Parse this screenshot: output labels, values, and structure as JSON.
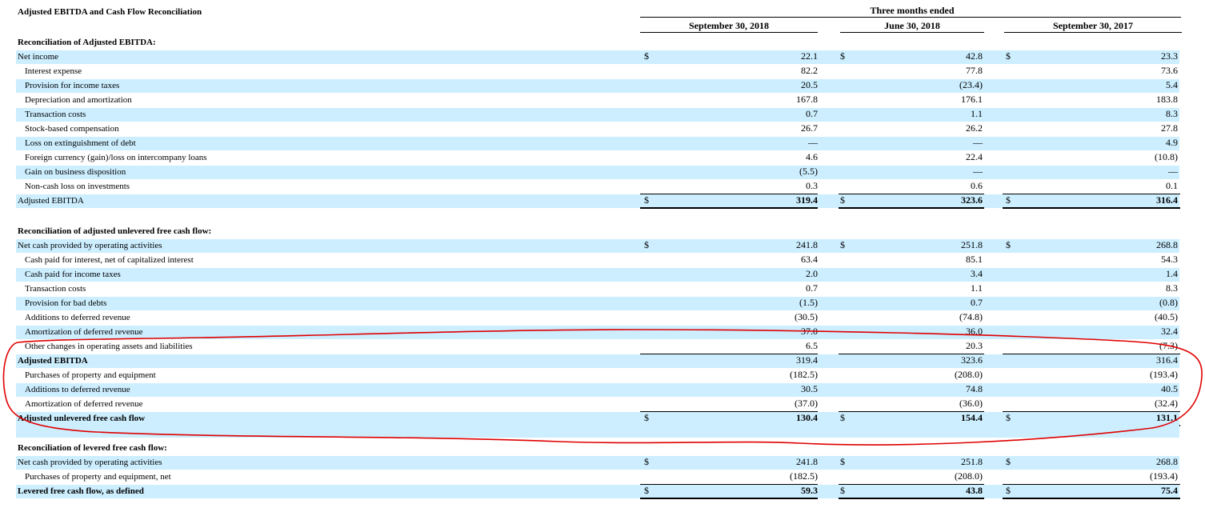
{
  "title": "Adjusted EBITDA and Cash Flow Reconciliation",
  "header": {
    "group": "Three months ended",
    "columns": [
      "September 30, 2018",
      "June 30, 2018",
      "September 30, 2017"
    ]
  },
  "currency_symbol": "$",
  "sections": [
    {
      "heading": "Reconciliation of Adjusted EBITDA:",
      "rows": [
        {
          "label": "Net income",
          "values": [
            "22.1",
            "42.8",
            "23.3"
          ],
          "dollar": true
        },
        {
          "label": "Interest expense",
          "values": [
            "82.2",
            "77.8",
            "73.6"
          ]
        },
        {
          "label": "Provision for income taxes",
          "values": [
            "20.5",
            "(23.4)",
            "5.4"
          ]
        },
        {
          "label": "Depreciation and amortization",
          "values": [
            "167.8",
            "176.1",
            "183.8"
          ]
        },
        {
          "label": "Transaction costs",
          "values": [
            "0.7",
            "1.1",
            "8.3"
          ]
        },
        {
          "label": "Stock-based compensation",
          "values": [
            "26.7",
            "26.2",
            "27.8"
          ]
        },
        {
          "label": "Loss on extinguishment of debt",
          "values": [
            "—",
            "—",
            "4.9"
          ]
        },
        {
          "label": "Foreign currency (gain)/loss on intercompany loans",
          "values": [
            "4.6",
            "22.4",
            "(10.8)"
          ]
        },
        {
          "label": "Gain on business disposition",
          "values": [
            "(5.5)",
            "—",
            "—"
          ]
        },
        {
          "label": "Non-cash loss on investments",
          "values": [
            "0.3",
            "0.6",
            "0.1"
          ]
        },
        {
          "label": "Adjusted EBITDA",
          "values": [
            "319.4",
            "323.6",
            "316.4"
          ],
          "dollar": true,
          "total": true
        }
      ]
    },
    {
      "heading": "Reconciliation of adjusted unlevered free cash flow:",
      "rows": [
        {
          "label": "Net cash provided by operating activities",
          "values": [
            "241.8",
            "251.8",
            "268.8"
          ],
          "dollar": true
        },
        {
          "label": "Cash paid for interest, net of capitalized interest",
          "values": [
            "63.4",
            "85.1",
            "54.3"
          ]
        },
        {
          "label": "Cash paid for income taxes",
          "values": [
            "2.0",
            "3.4",
            "1.4"
          ]
        },
        {
          "label": "Transaction costs",
          "values": [
            "0.7",
            "1.1",
            "8.3"
          ]
        },
        {
          "label": "Provision for bad debts",
          "values": [
            "(1.5)",
            "0.7",
            "(0.8)"
          ]
        },
        {
          "label": "Additions to deferred revenue",
          "values": [
            "(30.5)",
            "(74.8)",
            "(40.5)"
          ]
        },
        {
          "label": "Amortization of deferred revenue",
          "values": [
            "37.0",
            "36.0",
            "32.4"
          ]
        },
        {
          "label": "Other changes in operating assets and liabilities",
          "values": [
            "6.5",
            "20.3",
            "(7.3)"
          ]
        },
        {
          "label": "Adjusted EBITDA",
          "values": [
            "319.4",
            "323.6",
            "316.4"
          ],
          "boldlabel": true
        },
        {
          "label": "Purchases of property and equipment",
          "values": [
            "(182.5)",
            "(208.0)",
            "(193.4)"
          ]
        },
        {
          "label": "Additions to deferred revenue",
          "values": [
            "30.5",
            "74.8",
            "40.5"
          ]
        },
        {
          "label": "Amortization of deferred revenue",
          "values": [
            "(37.0)",
            "(36.0)",
            "(32.4)"
          ]
        },
        {
          "label": "Adjusted unlevered free cash flow",
          "values": [
            "130.4",
            "154.4",
            "131.1"
          ],
          "dollar": true,
          "total": true
        }
      ]
    },
    {
      "heading": "Reconciliation of levered free cash flow:",
      "rows": [
        {
          "label": "Net cash provided by operating activities",
          "values": [
            "241.8",
            "251.8",
            "268.8"
          ],
          "dollar": true
        },
        {
          "label": "Purchases of property and equipment, net",
          "values": [
            "(182.5)",
            "(208.0)",
            "(193.4)"
          ]
        },
        {
          "label": "Levered free cash flow, as defined",
          "values": [
            "59.3",
            "43.8",
            "75.4"
          ],
          "dollar": true,
          "total": true
        }
      ]
    }
  ],
  "annotation": {
    "color": "#e00000"
  }
}
